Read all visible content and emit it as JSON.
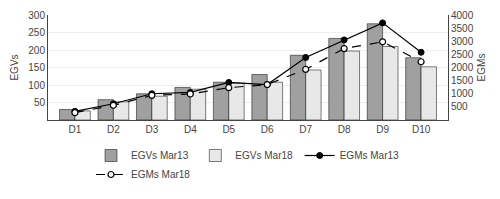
{
  "chart_data": {
    "type": "bar",
    "categories": [
      "D1",
      "D2",
      "D3",
      "D4",
      "D5",
      "D6",
      "D7",
      "D8",
      "D9",
      "D10"
    ],
    "series": [
      {
        "name": "EGVs Mar13",
        "type": "bar",
        "color": "#a0a0a0",
        "values": [
          30,
          58,
          75,
          93,
          108,
          130,
          185,
          233,
          275,
          178
        ]
      },
      {
        "name": "EGVs Mar18",
        "type": "bar",
        "color": "#e8e8e8",
        "values": [
          26,
          52,
          68,
          88,
          105,
          108,
          143,
          197,
          210,
          152
        ]
      },
      {
        "name": "EGMs Mar13",
        "type": "line",
        "axis": "y2",
        "color": "#000000",
        "marker": "circle",
        "line_style": "solid",
        "values": [
          330,
          620,
          1000,
          1050,
          1430,
          1350,
          2380,
          3050,
          3700,
          2580
        ]
      },
      {
        "name": "EGMs Mar18",
        "type": "line",
        "axis": "y2",
        "color": "#000000",
        "marker": "open_circle",
        "line_style": "dashed",
        "values": [
          280,
          560,
          940,
          990,
          1230,
          1350,
          1930,
          2720,
          2980,
          2220
        ]
      }
    ],
    "ylabel": "EGVs",
    "y2label": "EGMs",
    "ylim": [
      0,
      300
    ],
    "yticks": [
      50,
      100,
      150,
      200,
      250,
      300
    ],
    "y2lim": [
      0,
      4000
    ],
    "y2ticks": [
      500,
      1000,
      1500,
      2000,
      2500,
      3000,
      3500,
      4000
    ],
    "grid": true,
    "legend": "bottom"
  }
}
